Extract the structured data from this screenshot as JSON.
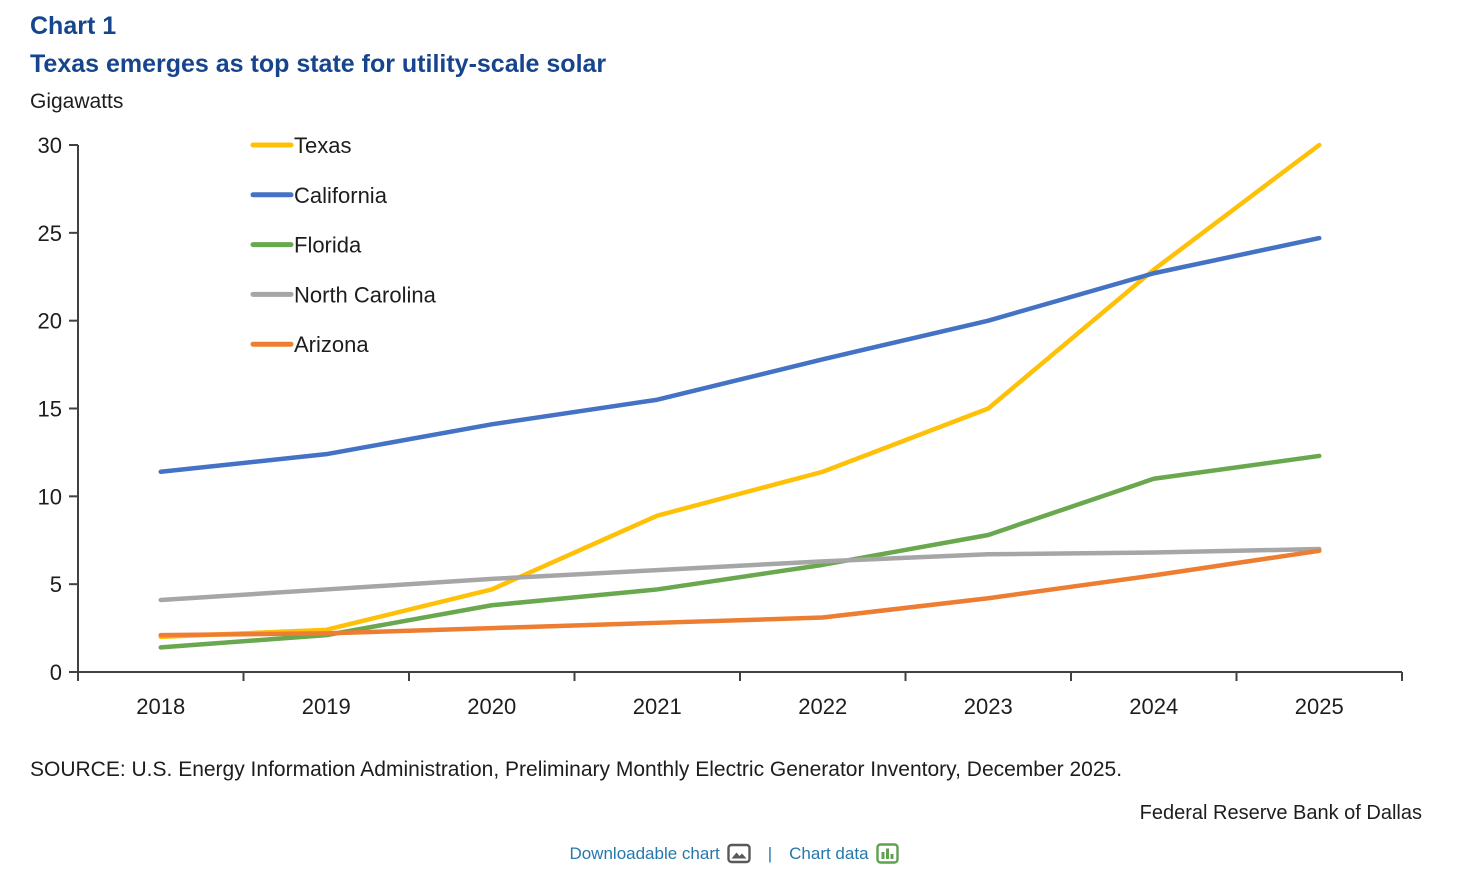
{
  "header": {
    "chart_label": "Chart 1",
    "title": "Texas emerges as top state for utility-scale solar",
    "unit_label": "Gigawatts"
  },
  "chart_data": {
    "type": "line",
    "title": "Texas emerges as top state for utility-scale solar",
    "ylabel": "Gigawatts",
    "xlabel": "",
    "ylim": [
      0,
      30
    ],
    "ytick_step": 5,
    "grid": false,
    "legend_position": "upper-left-inside",
    "categories": [
      "2018",
      "2019",
      "2020",
      "2021",
      "2022",
      "2023",
      "2024",
      "2025"
    ],
    "series": [
      {
        "name": "Texas",
        "color": "#FFC008",
        "values": [
          2.0,
          2.4,
          4.7,
          8.9,
          11.4,
          15.0,
          22.9,
          30.0
        ]
      },
      {
        "name": "California",
        "color": "#4472C4",
        "values": [
          11.4,
          12.4,
          14.1,
          15.5,
          17.8,
          20.0,
          22.7,
          24.7
        ]
      },
      {
        "name": "Florida",
        "color": "#6AA84F",
        "values": [
          1.4,
          2.1,
          3.8,
          4.7,
          6.1,
          7.8,
          11.0,
          12.3
        ]
      },
      {
        "name": "North Carolina",
        "color": "#A6A6A6",
        "values": [
          4.1,
          4.7,
          5.3,
          5.8,
          6.3,
          6.7,
          6.8,
          7.0
        ]
      },
      {
        "name": "Arizona",
        "color": "#ED7D31",
        "values": [
          2.1,
          2.2,
          2.5,
          2.8,
          3.1,
          4.2,
          5.5,
          6.9
        ]
      }
    ],
    "axis_color": "#414042",
    "tick_label_color": "#1d1d1b"
  },
  "footer": {
    "source_text": "SOURCE: U.S. Energy Information Administration, Preliminary Monthly Electric Generator Inventory, December 2025.",
    "attribution": "Federal Reserve Bank of Dallas",
    "links": {
      "downloadable_chart_label": "Downloadable chart",
      "separator": "|",
      "chart_data_label": "Chart data"
    },
    "link_color": "#2578AD",
    "image_icon_color": "#595959",
    "data_icon_color": "#5FA052"
  }
}
